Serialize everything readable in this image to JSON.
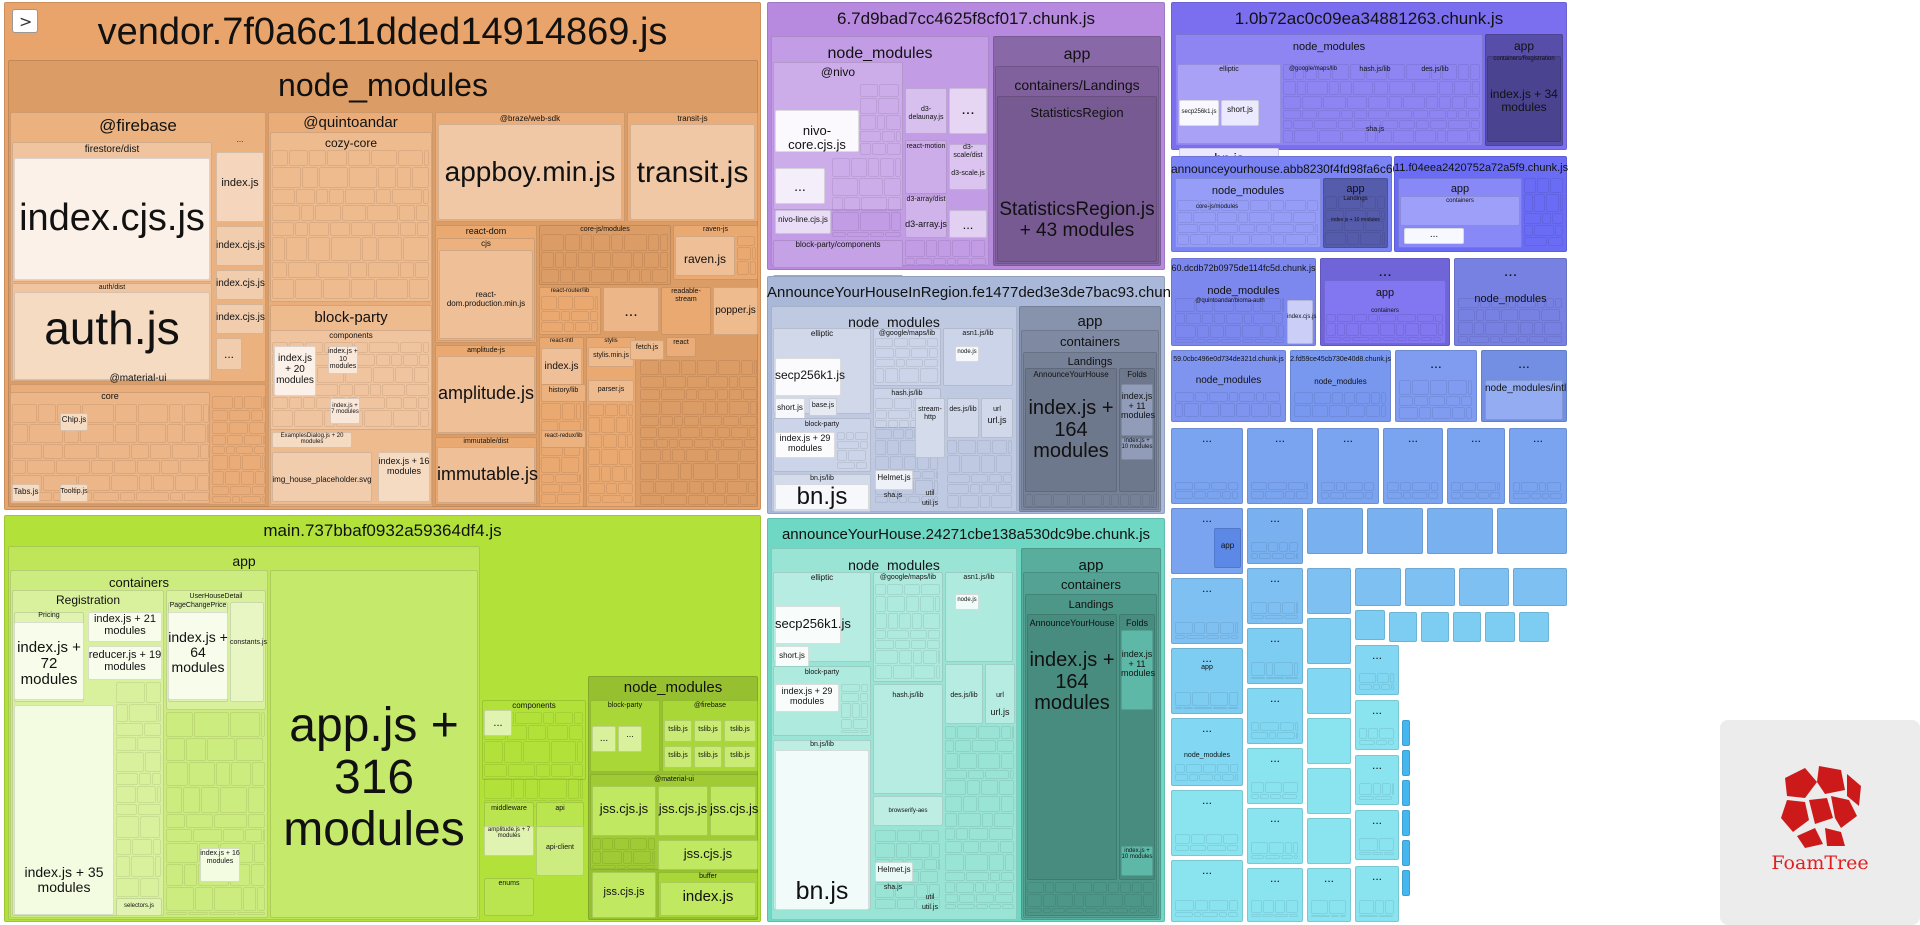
{
  "sidebar_toggle": ">",
  "logo": {
    "name": "foamtree-logo-icon",
    "text": "FoamTree"
  },
  "chart_data": {
    "type": "treemap",
    "chunks": [
      {
        "name": "vendor.7f0a6c11dded14914869.js",
        "color": "#e8a46a"
      },
      {
        "name": "main.737bbaf0932a59364df4.js",
        "color": "#b2e23a"
      },
      {
        "name": "6.7d9bad7cc4625f8cf017.chunk.js",
        "color": "#b78ae0"
      },
      {
        "name": "AnnounceYourHouseInRegion.fe1477ded3e3de7bac93.chunk.js",
        "color": "#a9b8d8"
      },
      {
        "name": "announceYourHouse.24271cbe138a530dc9be.chunk.js",
        "color": "#6ed8c4"
      },
      {
        "name": "1.0b72ac0c09ea34881263.chunk.js",
        "color": "#7b6ff0"
      },
      {
        "name": "announceyourhouse.abb8230f4fd98fa6c663.js",
        "color": "#7b84f5"
      },
      {
        "name": "11.f04eea2420752a72a5f9.chunk.js",
        "color": "#6a6cf5"
      },
      {
        "name": "60.dcdb72b0975de114fc5d.chunk.js",
        "color": "#7d88ee"
      },
      {
        "name": "59.0cbc496e0d734de321d.chunk.js",
        "color": "#7e94ee"
      },
      {
        "name": "2.fd59ce45cb730e40d8.chunk.js",
        "color": "#7897ef"
      }
    ]
  },
  "labels": {
    "vendor": "vendor.7f0a6c11dded14914869.js",
    "v_node_modules": "node_modules",
    "firebase": "@firebase",
    "firestore_dist": "firestore/dist",
    "index_cjs": "index.cjs.js",
    "auth_dist": "auth/dist",
    "auth_js": "auth.js",
    "index_js": "index.js",
    "index_cjs_js": "index.cjs.js",
    "ellipsis": "...",
    "quintoandar": "@quintoandar",
    "cozy_core": "cozy-core",
    "block_party": "block-party",
    "components": "components",
    "idx20": "index.js + 20 modules",
    "idx10": "index.js + 10 modules",
    "idx7": "index.js + 7 modules",
    "examples": "ExamplesDialog.js + 20 modules",
    "img_house": "img_house_placeholder.svg",
    "idx16": "index.js + 16 modules",
    "braze": "@braze/web-sdk",
    "appboy": "appboy.min.js",
    "transit_js_dir": "transit-js",
    "transit": "transit.js",
    "react_dom": "react-dom",
    "cjs": "cjs",
    "react_dom_prod": "react-dom.production.min.js",
    "core_js_modules": "core-js/modules",
    "raven_js_dir": "raven-js",
    "raven": "raven.js",
    "react_router": "react-router/lib",
    "readable_stream": "readable-stream",
    "popper": "popper.js",
    "amplitude_dir": "amplitude-js",
    "amplitude": "amplitude.js",
    "immutable_dist": "immutable/dist",
    "immutable": "immutable.js",
    "react_intl": "react-intl",
    "stylis": "stylis",
    "stylis_min": "stylis.min.js",
    "fetch": "fetch.js",
    "react": "react",
    "history": "history/lib",
    "parser": "parser.js",
    "react_redux": "react-redux/lib",
    "material_ui": "@material-ui",
    "core": "core",
    "chip": "Chip.js",
    "tabs": "Tabs.js",
    "tooltip": "Tooltip.js",
    "main": "main.737bbaf0932a59364df4.js",
    "app": "app",
    "containers": "containers",
    "registration": "Registration",
    "pricing": "Pricing",
    "idx72": "index.js + 72 modules",
    "idx21": "index.js + 21 modules",
    "reducer19": "reducer.js + 19 modules",
    "idx35": "index.js + 35 modules",
    "selectors": "selectors.js",
    "user_house_detail": "UserHouseDetail",
    "page_change_price": "PageChangePrice",
    "idx64": "index.js + 64 modules",
    "constants": "constants.js",
    "idx16b": "index.js + 16 modules",
    "app316": "app.js + 316 modules",
    "m_components": "components",
    "middleware": "middleware",
    "api": "api",
    "amplitude7": "amplitude.js + 7 modules",
    "api_client": "api-client",
    "enums": "enums",
    "m_node_modules": "node_modules",
    "m_block_party": "block-party",
    "m_firebase": "@firebase",
    "tslib": "tslib.js",
    "m_material_ui": "@material-ui",
    "jss": "jss.cjs.js",
    "buffer": "buffer",
    "c6": "6.7d9bad7cc4625f8cf017.chunk.js",
    "nivo": "@nivo",
    "nivo_core": "nivo-core.cjs.js",
    "nivo_line": "nivo-line.cjs.js",
    "block_party_components": "block-party/components",
    "d3_shape_dist": "d3-shape/dist",
    "d3_shape": "d3-shape.js",
    "d3_delaunay": "d3-delaunay.js",
    "react_motion": "react-motion",
    "d3_scale_dist": "d3-scale/dist",
    "d3_scale": "d3-scale.js",
    "d3_array_dist": "d3-array/dist",
    "d3_array": "d3-array.js",
    "containers_landings": "containers/Landings",
    "statistics_region": "StatisticsRegion",
    "statistics43": "StatisticsRegion.js + 43 modules",
    "ayhir": "AnnounceYourHouseInRegion.fe1477ded3e3de7bac93.chunk.js",
    "elliptic": "elliptic",
    "secp": "secp256k1.js",
    "short": "short.js",
    "base": "base.js",
    "idx29": "index.js + 29 modules",
    "bn_lib": "bn.js/lib",
    "bn": "bn.js",
    "google_maps": "@google/maps/lib",
    "asn1": "asn1.js/lib",
    "node_js": "node.js",
    "hash": "hash.js/lib",
    "stream_http": "stream-http",
    "des": "des.js/lib",
    "url": "url",
    "url_js": "url.js",
    "helmet": "Helmet.js",
    "sha": "sha.js",
    "util": "util",
    "util_js": "util.js",
    "landings": "Landings",
    "announce_your_house": "AnnounceYourHouse",
    "folds": "Folds",
    "idx164": "index.js + 164 modules",
    "idx11": "index.js + 11 modules",
    "idx10b": "index.js + 10 modules",
    "ayh": "announceYourHouse.24271cbe138a530dc9be.chunk.js",
    "browserify": "browserify-aes",
    "c1": "1.0b72ac0c09ea34881263.chunk.js",
    "googlemaps_lib": "@google/maps/lib",
    "containers_registration": "containers/Registration",
    "idx34": "index.js + 34 modules",
    "secp_s": "secp256k1.js",
    "ayh2": "announceyourhouse.abb8230f4fd98fa6c663.js",
    "c11": "11.f04eea2420752a72a5f9.chunk.js",
    "core_js_modules2": "core-js/modules",
    "c60": "60.dcdb72b0975de114fc5d.chunk.js",
    "bloma_auth": "@quintoandar/bioma-auth",
    "c59": "59.0cbc496e0d734de321d.chunk.js",
    "c2": "2.fd59ce45cb730e40d8.chunk.js",
    "node_modules_intl": "node_modules/intl"
  }
}
